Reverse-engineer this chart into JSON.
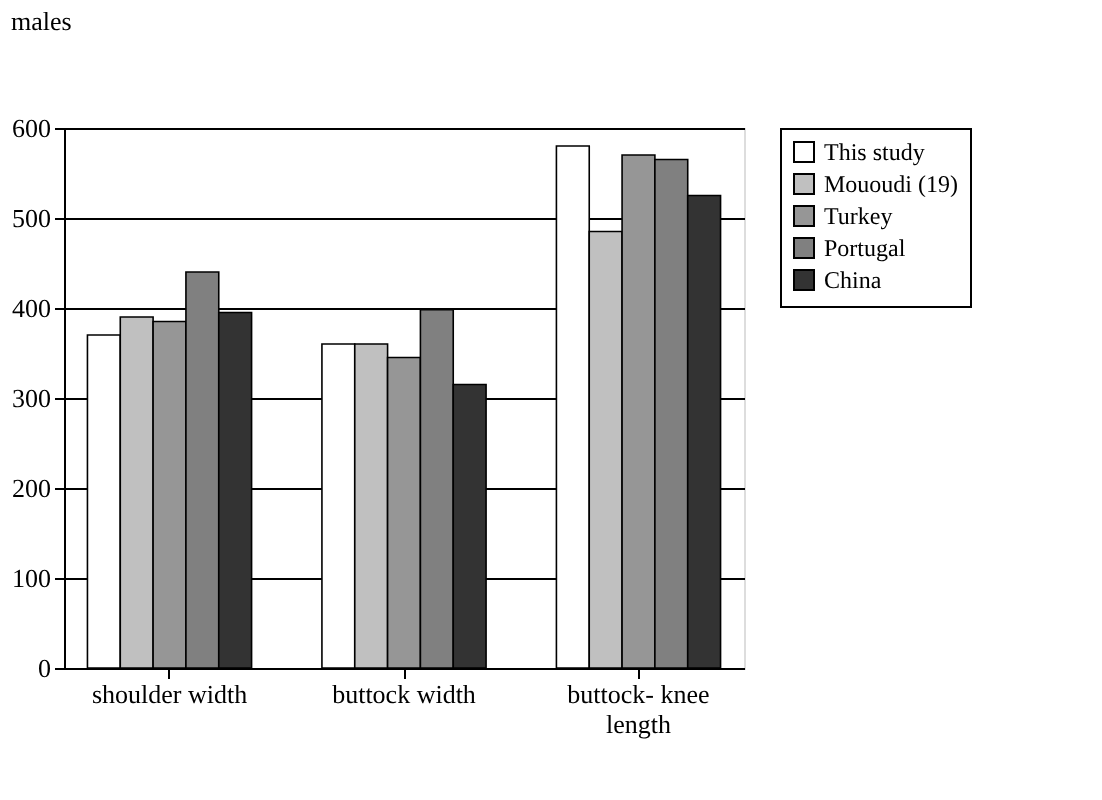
{
  "chart_data": {
    "type": "bar",
    "title": "males",
    "categories": [
      "shoulder width",
      "buttock width",
      "buttock- knee length"
    ],
    "series": [
      {
        "name": "This study",
        "color": "#ffffff",
        "values": [
          370,
          360,
          580
        ]
      },
      {
        "name": "Mououdi (19)",
        "color": "#c0c0c0",
        "values": [
          390,
          360,
          485
        ]
      },
      {
        "name": "Turkey",
        "color": "#969696",
        "values": [
          385,
          345,
          570
        ]
      },
      {
        "name": "Portugal",
        "color": "#808080",
        "values": [
          440,
          398,
          565
        ]
      },
      {
        "name": "China",
        "color": "#333333",
        "values": [
          395,
          315,
          525
        ]
      }
    ],
    "ylim": [
      0,
      600
    ],
    "yticks": [
      0,
      100,
      200,
      300,
      400,
      500,
      600
    ],
    "grid": "y",
    "legend": "right"
  }
}
